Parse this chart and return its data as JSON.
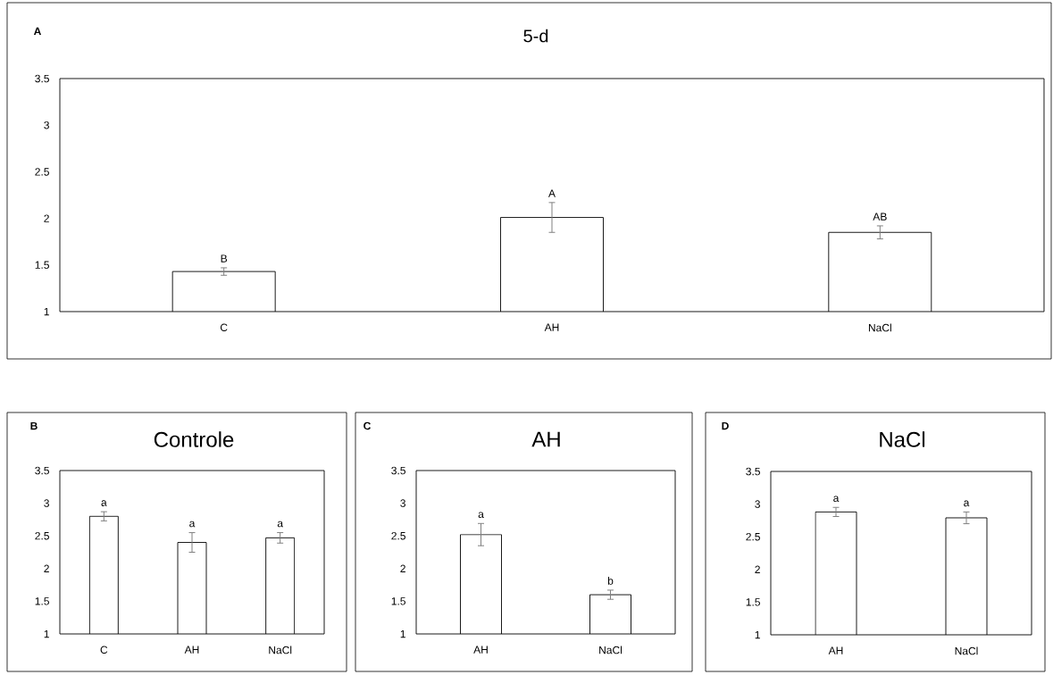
{
  "chart_data": [
    {
      "type": "bar",
      "title": "5-d",
      "categories": [
        "C",
        "AH",
        "NaCl"
      ],
      "values": [
        1.43,
        2.01,
        1.85
      ],
      "errors": [
        0.04,
        0.16,
        0.07
      ],
      "color": "#ffffff",
      "ylim": [
        1,
        3.5
      ],
      "yticks": [
        1,
        1.5,
        2,
        2.5,
        3,
        3.5
      ],
      "annotations": [
        "A",
        "B",
        "A",
        "AB"
      ]
    },
    {
      "type": "bar",
      "title": "Controle",
      "categories": [
        "C",
        "AH",
        "NaCl"
      ],
      "values": [
        2.8,
        2.4,
        2.47
      ],
      "errors": [
        0.07,
        0.15,
        0.08
      ],
      "color": "#ffffff",
      "ylim": [
        1,
        3.5
      ],
      "yticks": [
        1,
        1.5,
        2,
        2.5,
        3,
        3.5
      ],
      "annotations": [
        "B",
        "a",
        "a",
        "a"
      ]
    },
    {
      "type": "bar",
      "title": "AH",
      "categories": [
        "AH",
        "NaCl"
      ],
      "values": [
        2.52,
        1.6
      ],
      "errors": [
        0.17,
        0.07
      ],
      "color": "#ffffff",
      "ylim": [
        1,
        3.5
      ],
      "yticks": [
        1,
        1.5,
        2,
        2.5,
        3,
        3.5
      ],
      "annotations": [
        "C",
        "a",
        "b"
      ]
    },
    {
      "type": "bar",
      "title": "NaCl",
      "categories": [
        "AH",
        "NaCl"
      ],
      "values": [
        2.88,
        2.79
      ],
      "errors": [
        0.07,
        0.09
      ],
      "color": "#ffffff",
      "ylim": [
        1,
        3.5
      ],
      "yticks": [
        1,
        1.5,
        2,
        2.5,
        3,
        3.5
      ],
      "annotations": [
        "D",
        "a",
        "a"
      ]
    }
  ]
}
